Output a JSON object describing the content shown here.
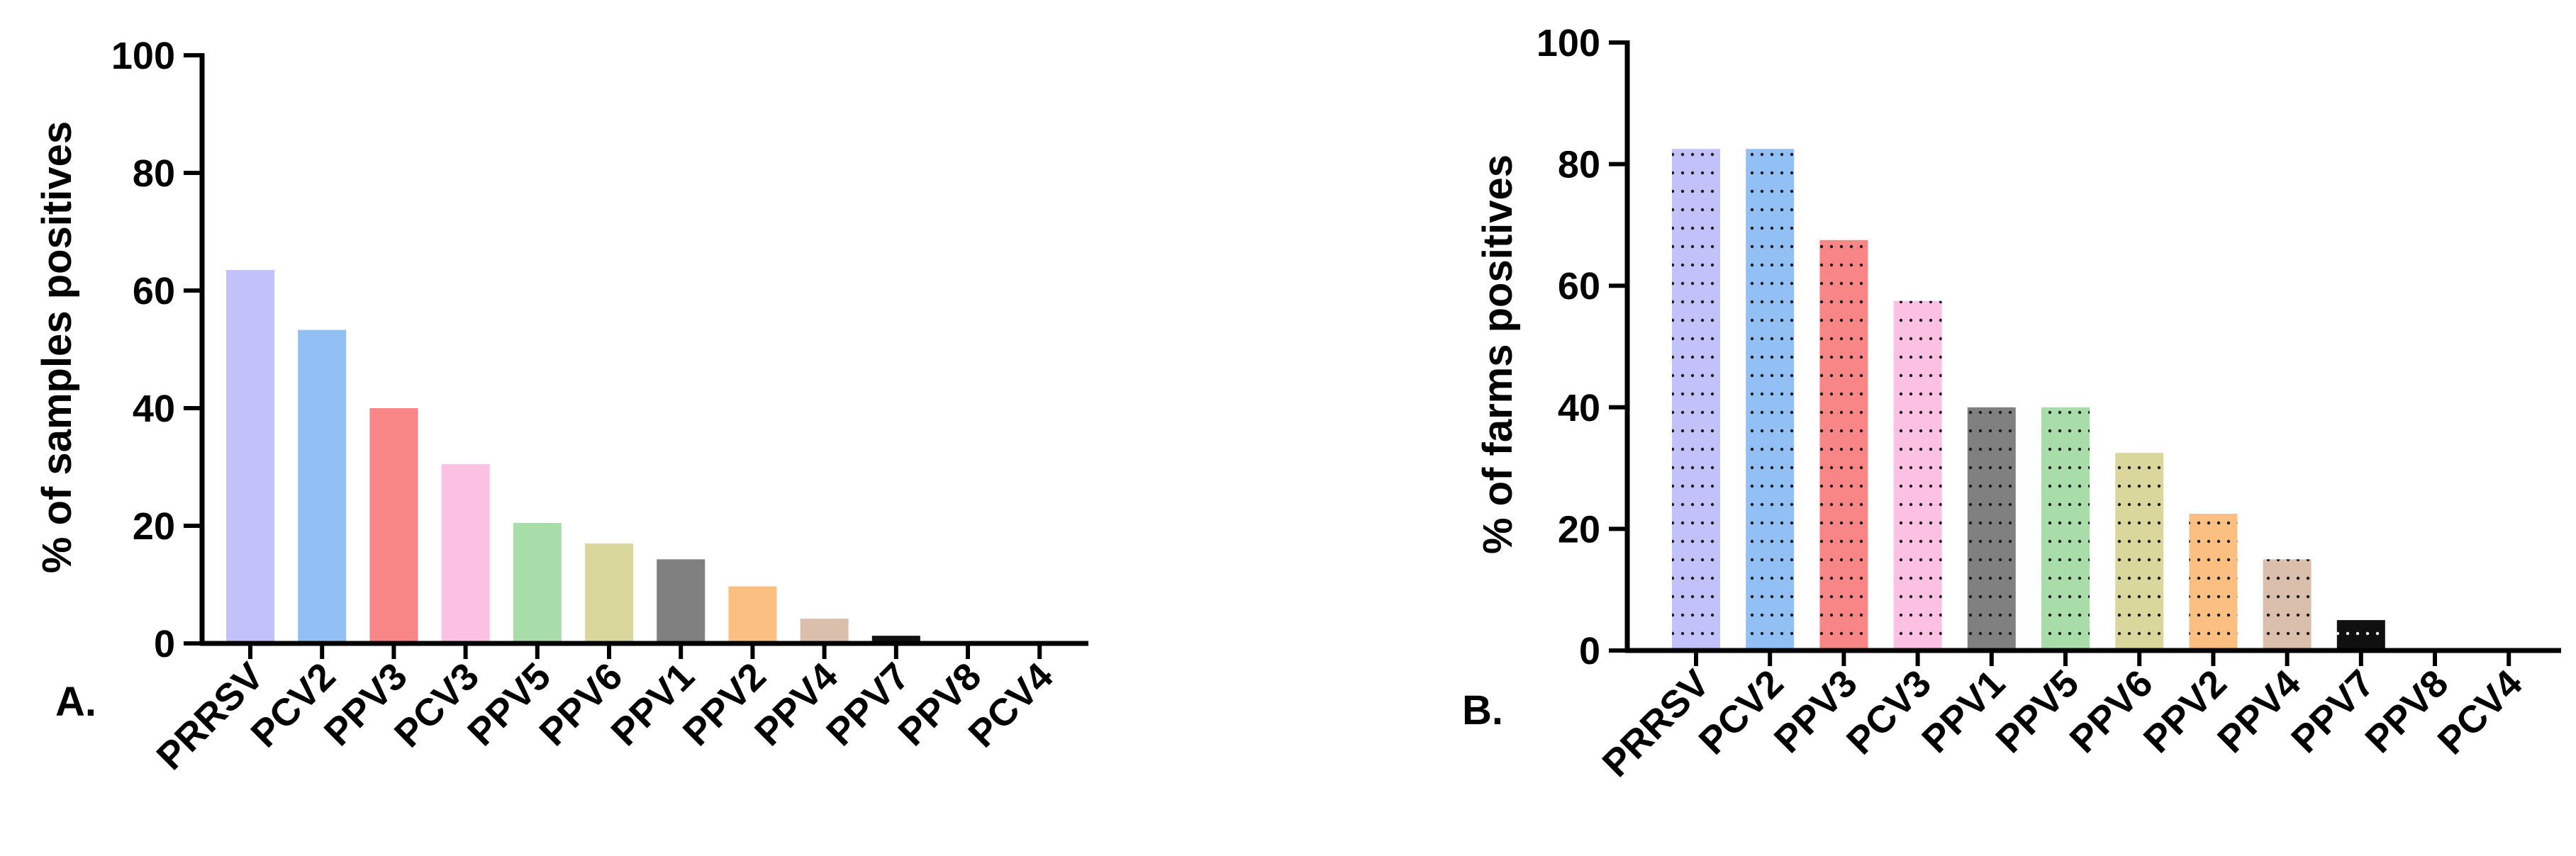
{
  "chart_data": [
    {
      "type": "bar",
      "panel_label": "A.",
      "ylabel": "% of samples positives",
      "xlabel": "",
      "ylim": [
        0,
        100
      ],
      "yticks": [
        0,
        20,
        40,
        60,
        80,
        100
      ],
      "pattern": "solid",
      "grid": false,
      "categories": [
        "PRRSV",
        "PCV2",
        "PPV3",
        "PCV3",
        "PPV5",
        "PPV6",
        "PPV1",
        "PPV2",
        "PPV4",
        "PPV7",
        "PPV8",
        "PCV4"
      ],
      "values": [
        63.5,
        53.3,
        40.0,
        30.5,
        20.5,
        17.0,
        14.3,
        9.7,
        4.2,
        1.3,
        0,
        0
      ],
      "colors": [
        "#c3c1f9",
        "#92bff4",
        "#f98686",
        "#fbc0e2",
        "#a8ddaa",
        "#d9d79c",
        "#808080",
        "#fbc081",
        "#d9bfac",
        "#101010",
        "#ffffff",
        "#ffffff"
      ]
    },
    {
      "type": "bar",
      "panel_label": "B.",
      "ylabel": "% of farms positives",
      "xlabel": "",
      "ylim": [
        0,
        100
      ],
      "yticks": [
        0,
        20,
        40,
        60,
        80,
        100
      ],
      "pattern": "dotted",
      "grid": false,
      "categories": [
        "PRRSV",
        "PCV2",
        "PPV3",
        "PCV3",
        "PPV1",
        "PPV5",
        "PPV6",
        "PPV2",
        "PPV4",
        "PPV7",
        "PPV8",
        "PCV4"
      ],
      "values": [
        82.5,
        82.5,
        67.5,
        57.5,
        40.0,
        40.0,
        32.5,
        22.5,
        15.0,
        5.0,
        0,
        0
      ],
      "colors": [
        "#c3c1f9",
        "#92bff4",
        "#f98686",
        "#fbc0e2",
        "#808080",
        "#a8ddaa",
        "#d9d79c",
        "#fbc081",
        "#d9bfac",
        "#101010",
        "#ffffff",
        "#ffffff"
      ]
    }
  ]
}
